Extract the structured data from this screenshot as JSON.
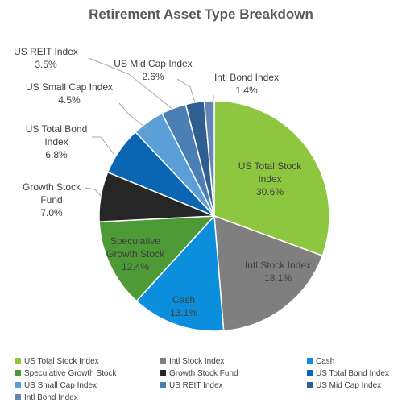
{
  "chart_data": {
    "type": "pie",
    "title": "Retirement Asset Type Breakdown",
    "slices": [
      {
        "label": "US Total Stock Index",
        "value": 30.6,
        "value_label": "30.6%",
        "color": "#8dc63f"
      },
      {
        "label": "Intl Stock Index",
        "value": 18.1,
        "value_label": "18.1%",
        "color": "#7f7f7f"
      },
      {
        "label": "Cash",
        "value": 13.1,
        "value_label": "13.1%",
        "color": "#0b8fdd"
      },
      {
        "label": "Speculative Growth Stock",
        "value": 12.4,
        "value_label": "12.4%",
        "color": "#4e9a37"
      },
      {
        "label": "Growth Stock Fund",
        "value": 7.0,
        "value_label": "7.0%",
        "color": "#262626"
      },
      {
        "label": "US Total Bond Index",
        "value": 6.8,
        "value_label": "6.8%",
        "color": "#0a66b2"
      },
      {
        "label": "US Small Cap Index",
        "value": 4.5,
        "value_label": "4.5%",
        "color": "#5a9fd8"
      },
      {
        "label": "US REIT Index",
        "value": 3.5,
        "value_label": "3.5%",
        "color": "#4a7fb3"
      },
      {
        "label": "US Mid Cap Index",
        "value": 2.6,
        "value_label": "2.6%",
        "color": "#2f5e91"
      },
      {
        "label": "Intl Bond Index",
        "value": 1.4,
        "value_label": "1.4%",
        "color": "#6486b6"
      }
    ],
    "legend_position": "bottom"
  }
}
